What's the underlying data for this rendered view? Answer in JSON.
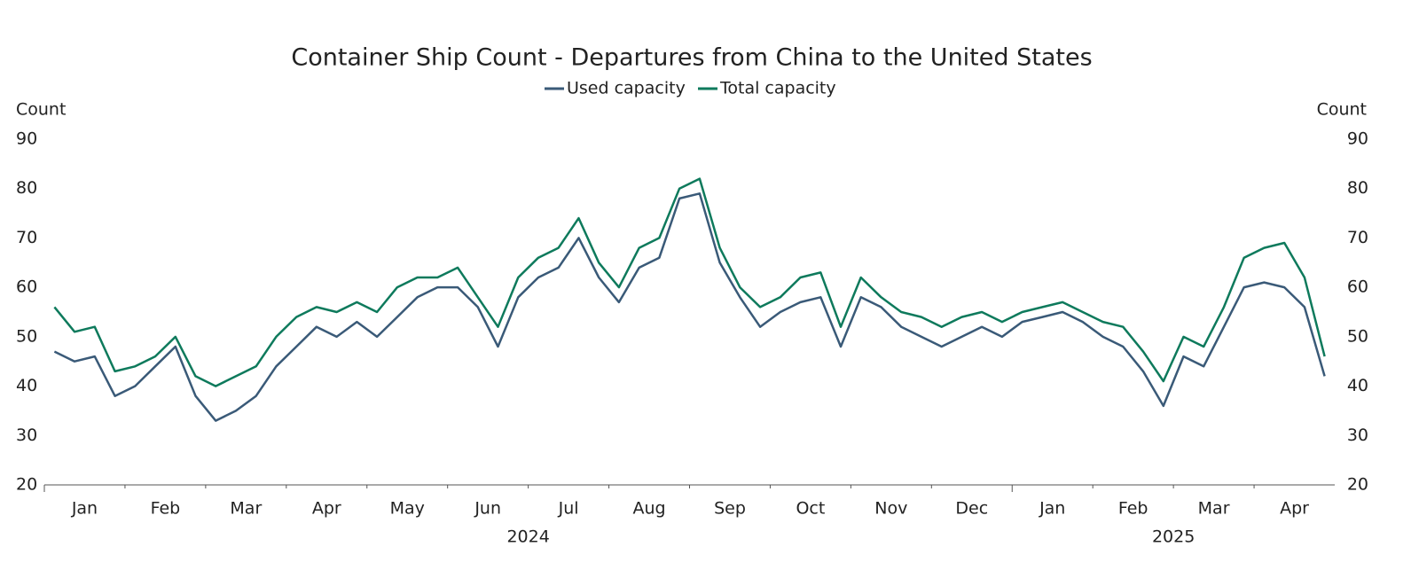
{
  "chart_data": {
    "type": "line",
    "title": "Container Ship Count - Departures from China to the United States",
    "y_label": "Count",
    "y2_label": "Count",
    "x": [
      "2024-01",
      "2024-01",
      "2024-01",
      "2024-01",
      "2024-02",
      "2024-02",
      "2024-02",
      "2024-02",
      "2024-03",
      "2024-03",
      "2024-03",
      "2024-03",
      "2024-04",
      "2024-04",
      "2024-04",
      "2024-04",
      "2024-05",
      "2024-05",
      "2024-05",
      "2024-05",
      "2024-06",
      "2024-06",
      "2024-06",
      "2024-06",
      "2024-07",
      "2024-07",
      "2024-07",
      "2024-07",
      "2024-08",
      "2024-08",
      "2024-08",
      "2024-08",
      "2024-09",
      "2024-09",
      "2024-09",
      "2024-09",
      "2024-10",
      "2024-10",
      "2024-10",
      "2024-10",
      "2024-11",
      "2024-11",
      "2024-11",
      "2024-11",
      "2024-12",
      "2024-12",
      "2024-12",
      "2024-12",
      "2025-01",
      "2025-01",
      "2025-01",
      "2025-01",
      "2025-02",
      "2025-02",
      "2025-02",
      "2025-02",
      "2025-03",
      "2025-03",
      "2025-03",
      "2025-03",
      "2025-04",
      "2025-04",
      "2025-04",
      "2025-04"
    ],
    "xticks": [
      {
        "value": "2024-01",
        "label": "Jan"
      },
      {
        "value": "2024-02",
        "label": "Feb"
      },
      {
        "value": "2024-03",
        "label": "Mar"
      },
      {
        "value": "2024-04",
        "label": "Apr"
      },
      {
        "value": "2024-05",
        "label": "May"
      },
      {
        "value": "2024-06",
        "label": "Jun"
      },
      {
        "value": "2024-07",
        "label": "Jul"
      },
      {
        "value": "2024-08",
        "label": "Aug"
      },
      {
        "value": "2024-09",
        "label": "Sep"
      },
      {
        "value": "2024-10",
        "label": "Oct"
      },
      {
        "value": "2024-11",
        "label": "Nov"
      },
      {
        "value": "2024-12",
        "label": "Dec"
      },
      {
        "value": "2025-01",
        "label": "Jan"
      },
      {
        "value": "2025-02",
        "label": "Feb"
      },
      {
        "value": "2025-03",
        "label": "Mar"
      },
      {
        "value": "2025-04",
        "label": "Apr"
      }
    ],
    "years": [
      "2024",
      "2025"
    ],
    "series": [
      {
        "name": "Used capacity",
        "color": "#3a5a78",
        "values": [
          47,
          45,
          46,
          38,
          40,
          44,
          48,
          38,
          33,
          35,
          38,
          44,
          48,
          52,
          50,
          53,
          50,
          54,
          58,
          60,
          60,
          56,
          48,
          58,
          62,
          64,
          70,
          62,
          57,
          64,
          66,
          78,
          79,
          65,
          58,
          52,
          55,
          57,
          58,
          48,
          58,
          56,
          52,
          50,
          48,
          50,
          52,
          50,
          53,
          54,
          55,
          53,
          50,
          48,
          43,
          36,
          46,
          44,
          52,
          60,
          61,
          60,
          56,
          42
        ]
      },
      {
        "name": "Total capacity",
        "color": "#0e7a5c",
        "values": [
          56,
          51,
          52,
          43,
          44,
          46,
          50,
          42,
          40,
          42,
          44,
          50,
          54,
          56,
          55,
          57,
          55,
          60,
          62,
          62,
          64,
          58,
          52,
          62,
          66,
          68,
          74,
          65,
          60,
          68,
          70,
          80,
          82,
          68,
          60,
          56,
          58,
          62,
          63,
          52,
          62,
          58,
          55,
          54,
          52,
          54,
          55,
          53,
          55,
          56,
          57,
          55,
          53,
          52,
          47,
          41,
          50,
          48,
          56,
          66,
          68,
          69,
          62,
          46
        ]
      }
    ],
    "ylim": [
      20,
      90
    ],
    "yticks": [
      20,
      30,
      40,
      50,
      60,
      70,
      80,
      90
    ],
    "y2lim": [
      20,
      90
    ],
    "y2ticks": [
      20,
      30,
      40,
      50,
      60,
      70,
      80,
      90
    ],
    "grid": false,
    "legend": "top"
  }
}
